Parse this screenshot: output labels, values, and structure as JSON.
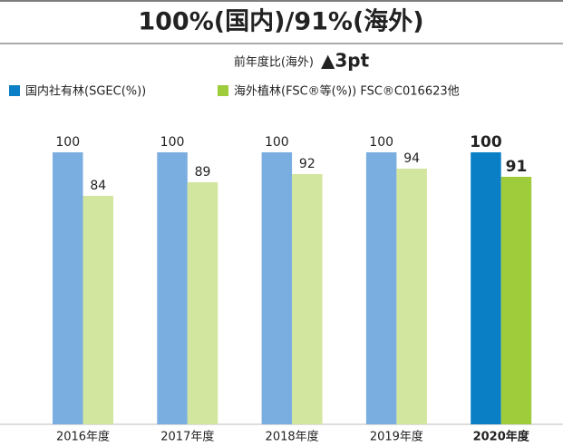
{
  "chart_data": {
    "type": "bar",
    "title": "100%(国内)/91%(海外)",
    "subtitle": "前年度比(海外)",
    "change": "▲3pt",
    "categories": [
      "2016年度",
      "2017年度",
      "2018年度",
      "2019年度",
      "2020年度"
    ],
    "series": [
      {
        "name": "国内社有林(SGEC(%))",
        "color": "#7aaee0",
        "highlight_color": "#0a7fc6",
        "values": [
          100,
          100,
          100,
          100,
          100
        ]
      },
      {
        "name": "海外植林(FSC®等(%)) FSC®C016623他",
        "color": "#d3e6a0",
        "highlight_color": "#9fcc3b",
        "values": [
          84,
          89,
          92,
          94,
          91
        ]
      }
    ],
    "highlight_index": 4,
    "ylim": [
      0,
      100
    ],
    "legend": "top-left"
  }
}
